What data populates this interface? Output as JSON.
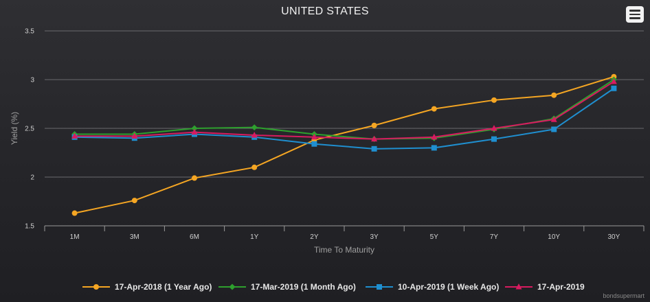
{
  "chart_data": {
    "type": "line",
    "title": "UNITED STATES",
    "xlabel": "Time To Maturity",
    "ylabel": "Yield (%)",
    "categories": [
      "1M",
      "3M",
      "6M",
      "1Y",
      "2Y",
      "3Y",
      "5Y",
      "7Y",
      "10Y",
      "30Y"
    ],
    "ylim": [
      1.5,
      3.5
    ],
    "yticks": [
      "1.5",
      "2",
      "2.5",
      "3",
      "3.5"
    ],
    "grid": true,
    "legend_position": "bottom",
    "series": [
      {
        "name": "17-Apr-2018 (1 Year Ago)",
        "color": "#f5a623",
        "marker": "circle",
        "values": [
          1.63,
          1.76,
          1.99,
          2.1,
          2.38,
          2.53,
          2.7,
          2.79,
          2.84,
          3.03
        ]
      },
      {
        "name": "17-Mar-2019 (1 Month Ago)",
        "color": "#2ea02e",
        "marker": "diamond",
        "values": [
          2.44,
          2.44,
          2.5,
          2.51,
          2.44,
          2.39,
          2.4,
          2.49,
          2.6,
          3.0
        ]
      },
      {
        "name": "10-Apr-2019 (1 Week Ago)",
        "color": "#1f8fd0",
        "marker": "square",
        "values": [
          2.41,
          2.4,
          2.44,
          2.41,
          2.34,
          2.29,
          2.3,
          2.39,
          2.49,
          2.91
        ]
      },
      {
        "name": "17-Apr-2019",
        "color": "#d81b60",
        "marker": "triangle",
        "values": [
          2.42,
          2.42,
          2.46,
          2.43,
          2.41,
          2.39,
          2.41,
          2.5,
          2.59,
          2.98
        ]
      }
    ]
  },
  "ui": {
    "menu_icon": "hamburger-menu-icon",
    "credit": "bondsupermart"
  }
}
